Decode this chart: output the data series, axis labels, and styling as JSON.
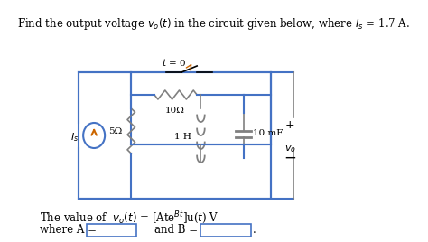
{
  "title_text": "Find the output voltage $v_o(t)$ in the circuit given below, where $I_s$ = 1.7 A.",
  "bottom_text1": "The value of  $v_o(t)$ = [Ate$^{Bt}$]u($t$) V",
  "bottom_text2": "where A = ",
  "bottom_text2b": "and B = ",
  "bg_color": "#ffffff",
  "circuit_color": "#4472c4",
  "wire_color": "#000000",
  "resistor_color": "#808080",
  "box_color": "#4472c4",
  "text_color": "#000000"
}
